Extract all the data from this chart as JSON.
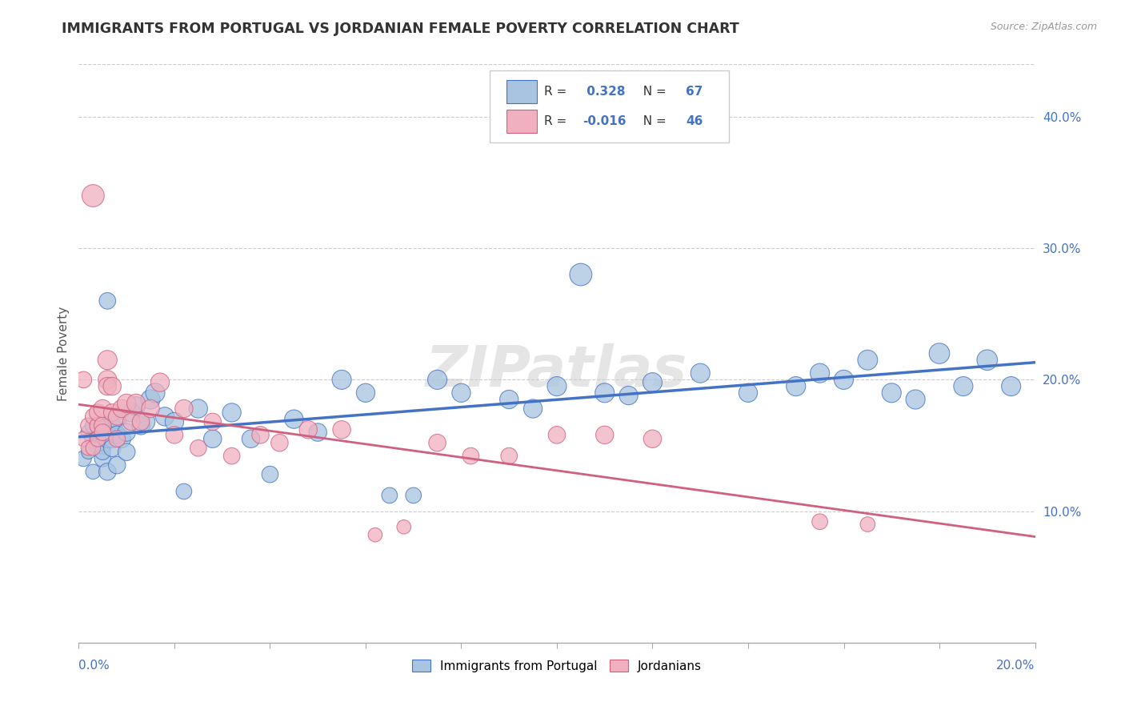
{
  "title": "IMMIGRANTS FROM PORTUGAL VS JORDANIAN FEMALE POVERTY CORRELATION CHART",
  "source": "Source: ZipAtlas.com",
  "ylabel": "Female Poverty",
  "legend_label1": "Immigrants from Portugal",
  "legend_label2": "Jordanians",
  "r1": 0.328,
  "n1": 67,
  "r2": -0.016,
  "n2": 46,
  "color_blue": "#a8c4e0",
  "color_pink": "#f0b0c0",
  "color_blue_line": "#4472c4",
  "color_pink_line": "#d06080",
  "color_blue_text": "#4472c4",
  "watermark": "ZIPatlas",
  "xlim": [
    0.0,
    0.2
  ],
  "ylim": [
    0.0,
    0.44
  ],
  "right_yticks": [
    0.1,
    0.2,
    0.3,
    0.4
  ],
  "right_yticklabels": [
    "10.0%",
    "20.0%",
    "30.0%",
    "40.0%"
  ],
  "blue_scatter_x": [
    0.001,
    0.002,
    0.002,
    0.003,
    0.003,
    0.003,
    0.004,
    0.004,
    0.004,
    0.005,
    0.005,
    0.005,
    0.005,
    0.006,
    0.006,
    0.006,
    0.006,
    0.007,
    0.007,
    0.007,
    0.008,
    0.008,
    0.008,
    0.009,
    0.01,
    0.01,
    0.011,
    0.012,
    0.013,
    0.014,
    0.015,
    0.016,
    0.018,
    0.02,
    0.022,
    0.025,
    0.028,
    0.032,
    0.036,
    0.04,
    0.045,
    0.05,
    0.055,
    0.06,
    0.065,
    0.07,
    0.075,
    0.08,
    0.09,
    0.095,
    0.1,
    0.105,
    0.11,
    0.115,
    0.12,
    0.13,
    0.14,
    0.15,
    0.155,
    0.16,
    0.165,
    0.17,
    0.175,
    0.18,
    0.185,
    0.19,
    0.195
  ],
  "blue_scatter_y": [
    0.14,
    0.16,
    0.145,
    0.155,
    0.165,
    0.13,
    0.155,
    0.15,
    0.165,
    0.16,
    0.15,
    0.14,
    0.145,
    0.165,
    0.155,
    0.13,
    0.26,
    0.165,
    0.155,
    0.148,
    0.17,
    0.158,
    0.135,
    0.155,
    0.145,
    0.16,
    0.175,
    0.18,
    0.165,
    0.168,
    0.185,
    0.19,
    0.172,
    0.168,
    0.115,
    0.178,
    0.155,
    0.175,
    0.155,
    0.128,
    0.17,
    0.16,
    0.2,
    0.19,
    0.112,
    0.112,
    0.2,
    0.19,
    0.185,
    0.178,
    0.195,
    0.28,
    0.19,
    0.188,
    0.198,
    0.205,
    0.19,
    0.195,
    0.205,
    0.2,
    0.215,
    0.19,
    0.185,
    0.22,
    0.195,
    0.215,
    0.195
  ],
  "pink_scatter_x": [
    0.001,
    0.001,
    0.002,
    0.002,
    0.003,
    0.003,
    0.003,
    0.004,
    0.004,
    0.004,
    0.005,
    0.005,
    0.005,
    0.006,
    0.006,
    0.006,
    0.007,
    0.007,
    0.008,
    0.008,
    0.009,
    0.01,
    0.011,
    0.012,
    0.013,
    0.015,
    0.017,
    0.02,
    0.022,
    0.025,
    0.028,
    0.032,
    0.038,
    0.042,
    0.048,
    0.055,
    0.062,
    0.068,
    0.075,
    0.082,
    0.09,
    0.1,
    0.11,
    0.12,
    0.155,
    0.165
  ],
  "pink_scatter_y": [
    0.155,
    0.2,
    0.148,
    0.165,
    0.148,
    0.172,
    0.34,
    0.165,
    0.155,
    0.175,
    0.165,
    0.16,
    0.178,
    0.2,
    0.215,
    0.195,
    0.195,
    0.175,
    0.155,
    0.172,
    0.178,
    0.182,
    0.168,
    0.182,
    0.168,
    0.178,
    0.198,
    0.158,
    0.178,
    0.148,
    0.168,
    0.142,
    0.158,
    0.152,
    0.162,
    0.162,
    0.082,
    0.088,
    0.152,
    0.142,
    0.142,
    0.158,
    0.158,
    0.155,
    0.092,
    0.09
  ],
  "blue_sizes": [
    200,
    180,
    160,
    220,
    200,
    180,
    240,
    220,
    200,
    260,
    240,
    220,
    200,
    280,
    260,
    240,
    220,
    280,
    260,
    240,
    280,
    260,
    240,
    260,
    240,
    260,
    280,
    280,
    260,
    280,
    300,
    300,
    280,
    280,
    200,
    280,
    260,
    280,
    260,
    220,
    280,
    260,
    300,
    280,
    200,
    200,
    300,
    280,
    280,
    280,
    300,
    400,
    300,
    280,
    300,
    300,
    280,
    300,
    300,
    300,
    320,
    300,
    300,
    340,
    300,
    340,
    300
  ],
  "pink_sizes": [
    180,
    220,
    180,
    200,
    180,
    200,
    400,
    220,
    200,
    240,
    240,
    220,
    260,
    280,
    300,
    260,
    260,
    240,
    220,
    240,
    260,
    280,
    240,
    280,
    240,
    260,
    280,
    240,
    260,
    220,
    240,
    220,
    240,
    240,
    260,
    260,
    160,
    160,
    240,
    220,
    220,
    240,
    260,
    260,
    200,
    180
  ]
}
